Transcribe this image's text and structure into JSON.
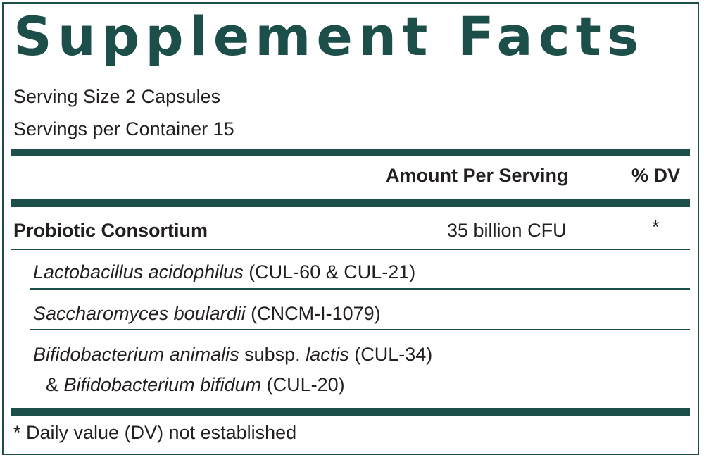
{
  "label": {
    "title": "Supplement Facts",
    "serving_size": "Serving Size 2 Capsules",
    "servings_per_container": "Servings per Container 15"
  },
  "columns": {
    "amount_header": "Amount Per Serving",
    "dv_header": "% DV"
  },
  "nutrient": {
    "name": "Probiotic Consortium",
    "amount": "35 billion CFU",
    "dv": "*"
  },
  "strains": [
    {
      "italic": "Lactobacillus acidophilus",
      "rest": " (CUL-60 & CUL-21)"
    },
    {
      "italic": "Saccharomyces boulardii",
      "rest": " (CNCM-I-1079)"
    },
    {
      "italic": "Bifidobacterium animalis",
      "middle": " subsp. ",
      "italic2": "lactis",
      "rest": " (CUL-34)",
      "line2_prefix": "& ",
      "line2_italic": "Bifidobacterium bifidum",
      "line2_rest": " (CUL-20)"
    }
  ],
  "footnote": "* Daily value (DV) not established",
  "colors": {
    "accent": "#1d4f4a",
    "text": "#231f20"
  }
}
